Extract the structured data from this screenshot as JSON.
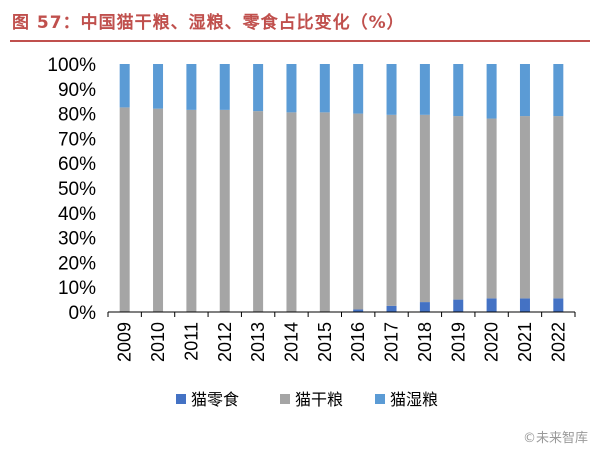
{
  "title": "图 57：中国猫干粮、湿粮、零食占比变化（%）",
  "watermark": "©未来智库",
  "chart_data": {
    "type": "bar",
    "stacked": true,
    "categories": [
      "2009",
      "2010",
      "2011",
      "2012",
      "2013",
      "2014",
      "2015",
      "2016",
      "2017",
      "2018",
      "2019",
      "2020",
      "2021",
      "2022"
    ],
    "y_ticks": [
      "0%",
      "10%",
      "20%",
      "30%",
      "40%",
      "50%",
      "60%",
      "70%",
      "80%",
      "90%",
      "100%"
    ],
    "ylim": [
      0,
      100
    ],
    "series": [
      {
        "name": "猫零食",
        "color": "#4472C4",
        "values": [
          0,
          0,
          0,
          0,
          0,
          0,
          0,
          1,
          2.5,
          4,
          5,
          5.5,
          5.5,
          5.5
        ]
      },
      {
        "name": "猫干粮",
        "color": "#A5A5A5",
        "values": [
          82.5,
          82,
          81.5,
          81.5,
          81,
          80.5,
          80.5,
          79,
          77,
          75.5,
          74,
          72.5,
          73.5,
          73.5
        ]
      },
      {
        "name": "猫湿粮",
        "color": "#5B9BD5",
        "values": [
          17.5,
          18,
          18.5,
          18.5,
          19,
          19.5,
          19.5,
          20,
          20.5,
          20.5,
          21,
          22,
          21,
          21
        ]
      }
    ],
    "legend_position": "bottom",
    "grid": false
  }
}
